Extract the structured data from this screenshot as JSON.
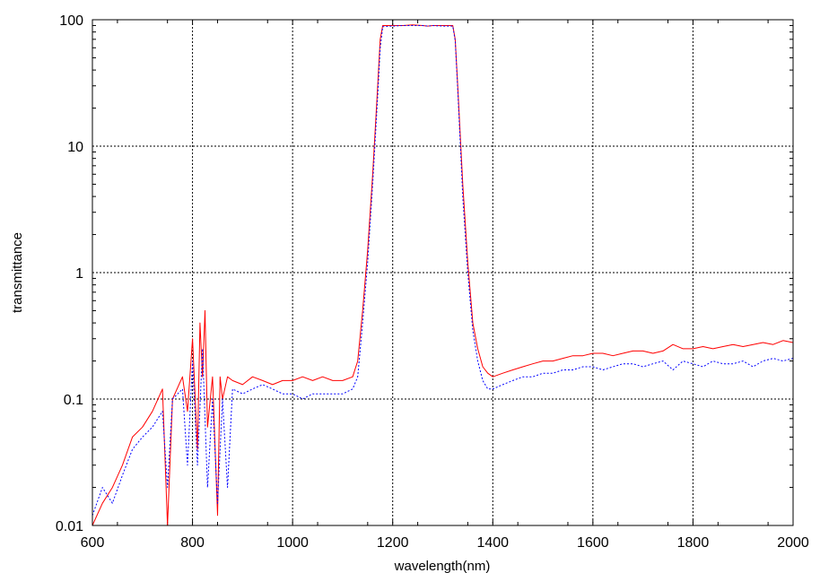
{
  "chart_data": {
    "type": "line",
    "xlabel": "wavelength(nm)",
    "ylabel": "transmittance",
    "xlim": [
      600,
      2000
    ],
    "ylim": [
      0.01,
      100
    ],
    "yscale": "log",
    "grid": true,
    "x_ticks": [
      "600",
      "800",
      "1000",
      "1200",
      "1400",
      "1600",
      "1800",
      "2000"
    ],
    "y_ticks": [
      "100",
      "10",
      "1",
      "0.1",
      "0.01"
    ],
    "x_tick_values": [
      600,
      800,
      1000,
      1200,
      1400,
      1600,
      1800,
      2000
    ],
    "y_tick_values": [
      100,
      10,
      1,
      0.1,
      0.01
    ],
    "series": [
      {
        "color": "#ff0000",
        "style": "solid",
        "x": [
          600,
          620,
          640,
          660,
          680,
          700,
          720,
          740,
          750,
          760,
          780,
          790,
          800,
          810,
          815,
          820,
          825,
          830,
          840,
          850,
          855,
          860,
          870,
          880,
          900,
          920,
          940,
          960,
          980,
          1000,
          1020,
          1040,
          1060,
          1080,
          1100,
          1120,
          1130,
          1140,
          1150,
          1160,
          1170,
          1175,
          1180,
          1200,
          1220,
          1240,
          1260,
          1270,
          1280,
          1300,
          1320,
          1325,
          1330,
          1340,
          1350,
          1360,
          1370,
          1380,
          1390,
          1400,
          1420,
          1440,
          1460,
          1480,
          1500,
          1520,
          1540,
          1560,
          1580,
          1600,
          1620,
          1640,
          1660,
          1680,
          1700,
          1720,
          1740,
          1760,
          1780,
          1800,
          1820,
          1840,
          1860,
          1880,
          1900,
          1920,
          1940,
          1960,
          1980,
          2000
        ],
        "y": [
          0.01,
          0.015,
          0.02,
          0.03,
          0.05,
          0.06,
          0.08,
          0.12,
          0.01,
          0.1,
          0.15,
          0.08,
          0.3,
          0.04,
          0.4,
          0.15,
          0.5,
          0.06,
          0.15,
          0.012,
          0.15,
          0.1,
          0.15,
          0.14,
          0.13,
          0.15,
          0.14,
          0.13,
          0.14,
          0.14,
          0.15,
          0.14,
          0.15,
          0.14,
          0.14,
          0.15,
          0.2,
          0.5,
          1.5,
          6,
          30,
          70,
          90,
          90,
          90,
          91,
          90,
          89,
          90,
          90,
          90,
          70,
          30,
          5,
          1.2,
          0.4,
          0.25,
          0.18,
          0.16,
          0.15,
          0.16,
          0.17,
          0.18,
          0.19,
          0.2,
          0.2,
          0.21,
          0.22,
          0.22,
          0.23,
          0.23,
          0.22,
          0.23,
          0.24,
          0.24,
          0.23,
          0.24,
          0.27,
          0.25,
          0.25,
          0.26,
          0.25,
          0.26,
          0.27,
          0.26,
          0.27,
          0.28,
          0.27,
          0.29,
          0.28
        ]
      },
      {
        "color": "#0000ff",
        "style": "dotted",
        "x": [
          600,
          620,
          640,
          660,
          680,
          700,
          720,
          740,
          750,
          760,
          780,
          790,
          800,
          810,
          820,
          830,
          840,
          850,
          860,
          870,
          880,
          900,
          920,
          940,
          960,
          980,
          1000,
          1020,
          1040,
          1060,
          1080,
          1100,
          1120,
          1130,
          1140,
          1150,
          1160,
          1170,
          1175,
          1180,
          1200,
          1220,
          1240,
          1260,
          1270,
          1280,
          1300,
          1320,
          1325,
          1330,
          1340,
          1350,
          1360,
          1370,
          1380,
          1390,
          1400,
          1420,
          1440,
          1460,
          1480,
          1500,
          1520,
          1540,
          1560,
          1580,
          1600,
          1620,
          1640,
          1660,
          1680,
          1700,
          1720,
          1740,
          1760,
          1780,
          1800,
          1820,
          1840,
          1860,
          1880,
          1900,
          1920,
          1940,
          1960,
          1980,
          2000
        ],
        "y": [
          0.012,
          0.02,
          0.015,
          0.025,
          0.04,
          0.05,
          0.06,
          0.08,
          0.02,
          0.1,
          0.12,
          0.03,
          0.2,
          0.03,
          0.25,
          0.02,
          0.1,
          0.015,
          0.1,
          0.02,
          0.12,
          0.11,
          0.12,
          0.13,
          0.12,
          0.11,
          0.11,
          0.1,
          0.11,
          0.11,
          0.11,
          0.11,
          0.12,
          0.15,
          0.4,
          1.2,
          5,
          25,
          60,
          88,
          89,
          90,
          90,
          90,
          89,
          90,
          89,
          89,
          68,
          28,
          4,
          1.0,
          0.35,
          0.2,
          0.14,
          0.12,
          0.12,
          0.13,
          0.14,
          0.15,
          0.15,
          0.16,
          0.16,
          0.17,
          0.17,
          0.18,
          0.18,
          0.17,
          0.18,
          0.19,
          0.19,
          0.18,
          0.19,
          0.2,
          0.17,
          0.2,
          0.19,
          0.18,
          0.2,
          0.19,
          0.19,
          0.2,
          0.18,
          0.2,
          0.21,
          0.2,
          0.21
        ]
      }
    ]
  }
}
